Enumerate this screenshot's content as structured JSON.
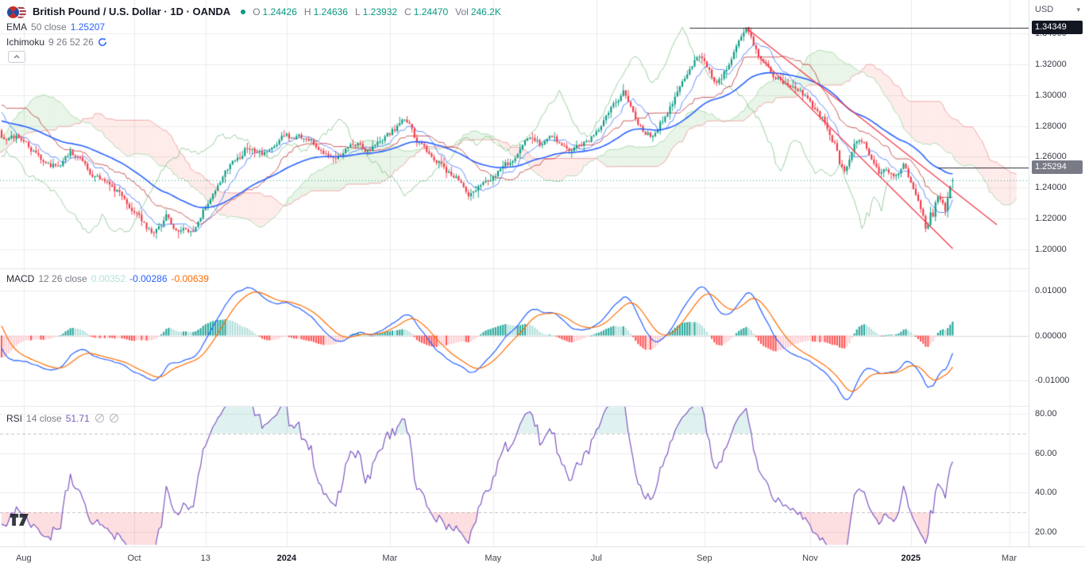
{
  "header": {
    "symbol_title": "British Pound / U.S. Dollar · 1D · OANDA",
    "ohlc": {
      "o_label": "O",
      "o": "1.24426",
      "h_label": "H",
      "h": "1.24636",
      "l_label": "L",
      "l": "1.23932",
      "c_label": "C",
      "c": "1.24470",
      "vol_label": "Vol",
      "vol": "246.2K"
    }
  },
  "legends": {
    "ema": {
      "name": "EMA",
      "params": "50 close",
      "value": "1.25207"
    },
    "ichimoku": {
      "name": "Ichimoku",
      "params": "9 26 52 26"
    },
    "macd": {
      "name": "MACD",
      "params": "12 26 close",
      "hist": "0.00352",
      "macd": "-0.00286",
      "signal": "-0.00639"
    },
    "rsi": {
      "name": "RSI",
      "params": "14 close",
      "value": "51.71"
    }
  },
  "axes": {
    "price_axis": {
      "currency": "USD",
      "decimals": 5,
      "ticks": [
        1.34,
        1.32,
        1.3,
        1.28,
        1.26,
        1.24,
        1.22,
        1.2
      ]
    },
    "macd_axis": {
      "decimals": 5,
      "ticks": [
        0.01,
        0,
        -0.01
      ]
    },
    "rsi_axis": {
      "decimals": 2,
      "ticks": [
        80,
        60,
        40,
        20
      ]
    },
    "badges": [
      {
        "text": "1.34349",
        "price": 1.34349,
        "bg": "#131722"
      },
      {
        "text": "1.25294",
        "price": 1.25294,
        "bg": "#787b86"
      }
    ],
    "time_axis": {
      "ticks": [
        {
          "t": "Aug",
          "bar": 9
        },
        {
          "t": "Oct",
          "bar": 54
        },
        {
          "t": "13",
          "bar": 83
        },
        {
          "t": "2024",
          "bar": 116,
          "bold": true
        },
        {
          "t": "Mar",
          "bar": 158
        },
        {
          "t": "May",
          "bar": 200
        },
        {
          "t": "Jul",
          "bar": 242
        },
        {
          "t": "Sep",
          "bar": 286
        },
        {
          "t": "Nov",
          "bar": 329
        },
        {
          "t": "2025",
          "bar": 370,
          "bold": true
        },
        {
          "t": "Mar",
          "bar": 410
        }
      ]
    }
  },
  "chart_data": {
    "type": "candlestick",
    "symbol": "GBPUSD",
    "timeframe": "1D",
    "venue": "OANDA",
    "bars": 388,
    "warmup_bars": 90,
    "price_ylim": [
      1.188,
      1.362
    ],
    "macd_ylim": [
      -0.0137,
      0.0137
    ],
    "rsi_ylim": [
      14,
      84
    ],
    "indicator_settings": {
      "ema_period": 50,
      "ichimoku": [
        9,
        26,
        52,
        26
      ],
      "macd": [
        12,
        26,
        9
      ],
      "rsi_period": 14
    },
    "last": {
      "open": 1.24426,
      "high": 1.24636,
      "low": 1.23932,
      "close": 1.2447
    },
    "peak": {
      "bar": 303,
      "high": 1.34349
    },
    "current_price_line": 1.2447,
    "horizontal_rays": [
      {
        "price": 1.34349,
        "from_bar": 280
      },
      {
        "price": 1.25294,
        "from_bar": 381
      }
    ],
    "trendlines": [
      {
        "from": [
          303,
          1.3435
        ],
        "to": [
          405,
          1.216
        ],
        "color": "#f23645"
      },
      {
        "from": [
          309,
          1.3235
        ],
        "to": [
          387,
          1.2005
        ],
        "color": "#f23645"
      }
    ],
    "warmup_anchors": [
      [
        -90,
        1.245
      ],
      [
        -78,
        1.24
      ],
      [
        -66,
        1.239
      ],
      [
        -56,
        1.243
      ],
      [
        -46,
        1.253
      ],
      [
        -38,
        1.265
      ],
      [
        -30,
        1.28
      ],
      [
        -24,
        1.296
      ],
      [
        -18,
        1.309
      ],
      [
        -14,
        1.314
      ],
      [
        -10,
        1.306
      ],
      [
        -6,
        1.295
      ],
      [
        -3,
        1.283
      ],
      [
        -1,
        1.276
      ]
    ],
    "price_anchors": [
      [
        0,
        1.2712
      ],
      [
        4,
        1.2745
      ],
      [
        8,
        1.2722
      ],
      [
        12,
        1.266
      ],
      [
        16,
        1.258
      ],
      [
        20,
        1.2525
      ],
      [
        24,
        1.257
      ],
      [
        28,
        1.2625
      ],
      [
        32,
        1.258
      ],
      [
        36,
        1.251
      ],
      [
        40,
        1.2462
      ],
      [
        44,
        1.2415
      ],
      [
        48,
        1.236
      ],
      [
        52,
        1.23
      ],
      [
        55,
        1.224
      ],
      [
        58,
        1.216
      ],
      [
        61,
        1.2095
      ],
      [
        64,
        1.215
      ],
      [
        67,
        1.221
      ],
      [
        70,
        1.216
      ],
      [
        73,
        1.2125
      ],
      [
        76,
        1.2105
      ],
      [
        79,
        1.215
      ],
      [
        82,
        1.225
      ],
      [
        85,
        1.233
      ],
      [
        88,
        1.2415
      ],
      [
        91,
        1.249
      ],
      [
        94,
        1.2545
      ],
      [
        97,
        1.26
      ],
      [
        100,
        1.2665
      ],
      [
        103,
        1.263
      ],
      [
        106,
        1.2615
      ],
      [
        109,
        1.2645
      ],
      [
        112,
        1.27
      ],
      [
        115,
        1.2755
      ],
      [
        118,
        1.2715
      ],
      [
        121,
        1.2735
      ],
      [
        124,
        1.271
      ],
      [
        127,
        1.269
      ],
      [
        130,
        1.2665
      ],
      [
        133,
        1.2615
      ],
      [
        136,
        1.258
      ],
      [
        139,
        1.262
      ],
      [
        142,
        1.2665
      ],
      [
        145,
        1.268
      ],
      [
        148,
        1.264
      ],
      [
        151,
        1.2665
      ],
      [
        154,
        1.27
      ],
      [
        157,
        1.273
      ],
      [
        160,
        1.278
      ],
      [
        163,
        1.2845
      ],
      [
        166,
        1.279
      ],
      [
        169,
        1.269
      ],
      [
        172,
        1.264
      ],
      [
        175,
        1.262
      ],
      [
        178,
        1.2565
      ],
      [
        181,
        1.2505
      ],
      [
        184,
        1.2465
      ],
      [
        187,
        1.244
      ],
      [
        190,
        1.2355
      ],
      [
        193,
        1.237
      ],
      [
        196,
        1.2425
      ],
      [
        199,
        1.2465
      ],
      [
        202,
        1.2505
      ],
      [
        205,
        1.254
      ],
      [
        208,
        1.258
      ],
      [
        211,
        1.268
      ],
      [
        214,
        1.2715
      ],
      [
        217,
        1.27
      ],
      [
        220,
        1.2675
      ],
      [
        223,
        1.273
      ],
      [
        226,
        1.27
      ],
      [
        229,
        1.2655
      ],
      [
        232,
        1.264
      ],
      [
        235,
        1.2675
      ],
      [
        238,
        1.2705
      ],
      [
        241,
        1.2745
      ],
      [
        244,
        1.2805
      ],
      [
        247,
        1.288
      ],
      [
        250,
        1.296
      ],
      [
        253,
        1.301
      ],
      [
        255,
        1.2955
      ],
      [
        258,
        1.286
      ],
      [
        261,
        1.278
      ],
      [
        264,
        1.2735
      ],
      [
        267,
        1.2785
      ],
      [
        270,
        1.286
      ],
      [
        273,
        1.294
      ],
      [
        276,
        1.304
      ],
      [
        279,
        1.314
      ],
      [
        282,
        1.322
      ],
      [
        285,
        1.3255
      ],
      [
        287,
        1.318
      ],
      [
        290,
        1.309
      ],
      [
        293,
        1.3125
      ],
      [
        296,
        1.3205
      ],
      [
        299,
        1.329
      ],
      [
        302,
        1.339
      ],
      [
        303,
        1.342
      ],
      [
        305,
        1.337
      ],
      [
        307,
        1.329
      ],
      [
        309,
        1.323
      ],
      [
        312,
        1.318
      ],
      [
        315,
        1.3125
      ],
      [
        318,
        1.3085
      ],
      [
        321,
        1.306
      ],
      [
        324,
        1.3025
      ],
      [
        327,
        1.2985
      ],
      [
        330,
        1.2925
      ],
      [
        333,
        1.287
      ],
      [
        336,
        1.2805
      ],
      [
        339,
        1.269
      ],
      [
        341,
        1.256
      ],
      [
        343,
        1.249
      ],
      [
        345,
        1.256
      ],
      [
        347,
        1.266
      ],
      [
        349,
        1.272
      ],
      [
        351,
        1.27
      ],
      [
        353,
        1.262
      ],
      [
        355,
        1.254
      ],
      [
        357,
        1.248
      ],
      [
        359,
        1.254
      ],
      [
        361,
        1.252
      ],
      [
        363,
        1.25
      ],
      [
        365,
        1.252
      ],
      [
        367,
        1.256
      ],
      [
        369,
        1.2475
      ],
      [
        371,
        1.239
      ],
      [
        373,
        1.23
      ],
      [
        375,
        1.221
      ],
      [
        376,
        1.215
      ],
      [
        377,
        1.218
      ],
      [
        378,
        1.224
      ],
      [
        379,
        1.221
      ],
      [
        380,
        1.231
      ],
      [
        381,
        1.236
      ],
      [
        382,
        1.233
      ],
      [
        383,
        1.229
      ],
      [
        384,
        1.225
      ],
      [
        385,
        1.233
      ],
      [
        386,
        1.241
      ],
      [
        387,
        1.2447
      ]
    ],
    "colors": {
      "up": "#089981",
      "down": "#f23645",
      "ema": "#2962ff",
      "macd": "#2962ff",
      "signal": "#ff6d00",
      "hist_up_grow": "#26a69a",
      "hist_up_fall": "#b2dfdb",
      "hist_dn_grow": "#ffcdd2",
      "hist_dn_fall": "#ff5252",
      "rsi": "#7e57c2",
      "cloud_up": "rgba(76,175,80,0.13)",
      "cloud_dn": "rgba(244,67,54,0.10)",
      "spanA": "#a5d6a7",
      "spanB": "#ef9a9a",
      "tenkan": "#2962ff",
      "kijun": "#b71c1c",
      "chikou": "#43a047",
      "trend": "#f23645",
      "grid": "rgba(42,46,57,0.09)",
      "zero_line": "rgba(42,46,57,0.18)",
      "levels": "#787b86",
      "ray": "#131722"
    }
  }
}
